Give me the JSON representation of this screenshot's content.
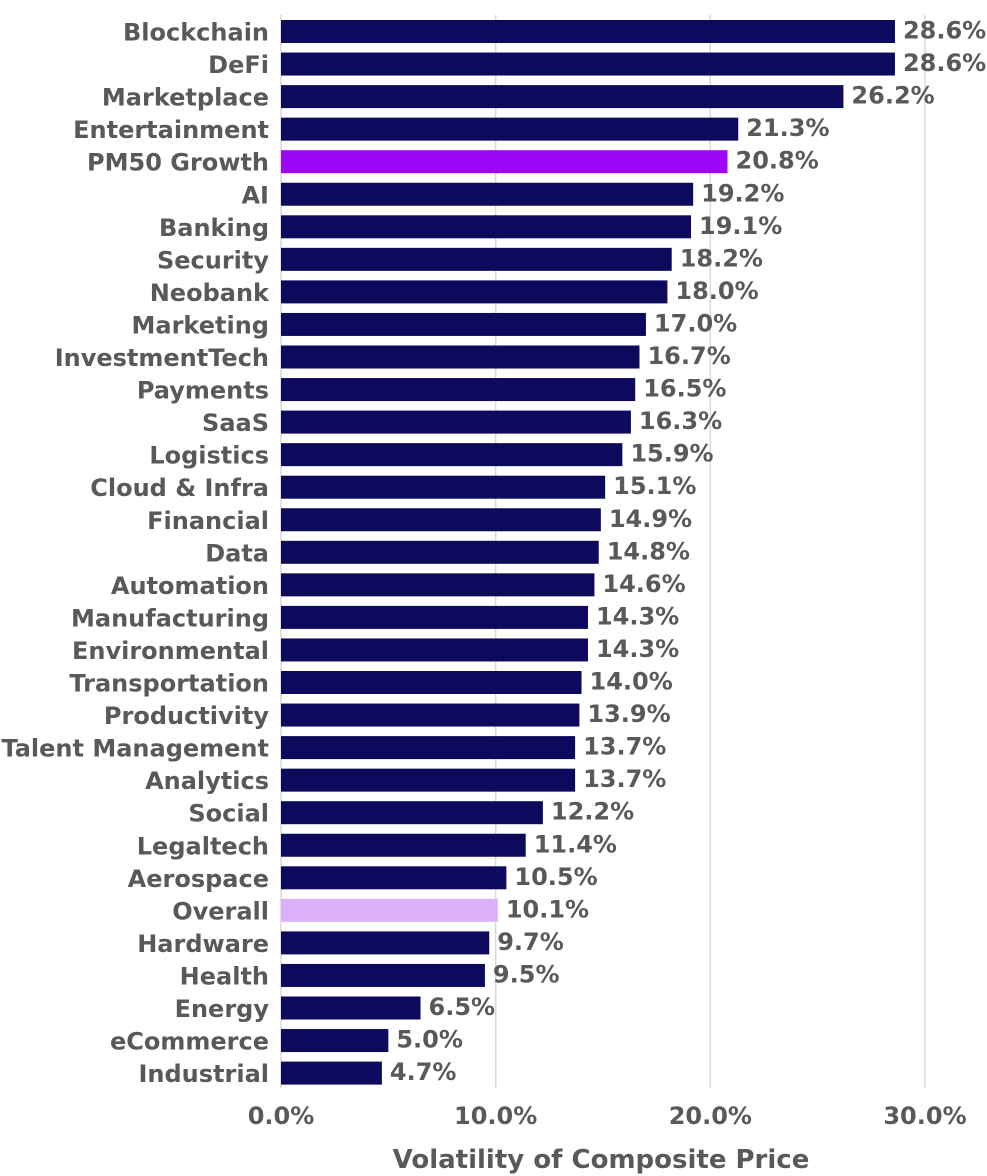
{
  "chart_data": {
    "type": "bar",
    "orientation": "horizontal",
    "title": "",
    "xlabel": "Volatility of Composite Price",
    "ylabel": "",
    "xlim": [
      0,
      30
    ],
    "xticks": [
      "0.0%",
      "10.0%",
      "20.0%",
      "30.0%"
    ],
    "xtick_values": [
      0,
      10,
      20,
      30
    ],
    "grid": "vertical",
    "legend": "none",
    "colors": {
      "default": "#0d0a5e",
      "PM50 Growth": "#9d07f5",
      "Overall": "#dcb0fa"
    },
    "categories": [
      "Blockchain",
      "DeFi",
      "Marketplace",
      "Entertainment",
      "PM50 Growth",
      "AI",
      "Banking",
      "Security",
      "Neobank",
      "Marketing",
      "InvestmentTech",
      "Payments",
      "SaaS",
      "Logistics",
      "Cloud & Infra",
      "Financial",
      "Data",
      "Automation",
      "Manufacturing",
      "Environmental",
      "Transportation",
      "Productivity",
      "Talent Management",
      "Analytics",
      "Social",
      "Legaltech",
      "Aerospace",
      "Overall",
      "Hardware",
      "Health",
      "Energy",
      "eCommerce",
      "Industrial"
    ],
    "values": [
      28.6,
      28.6,
      26.2,
      21.3,
      20.8,
      19.2,
      19.1,
      18.2,
      18.0,
      17.0,
      16.7,
      16.5,
      16.3,
      15.9,
      15.1,
      14.9,
      14.8,
      14.6,
      14.3,
      14.3,
      14.0,
      13.9,
      13.7,
      13.7,
      12.2,
      11.4,
      10.5,
      10.1,
      9.7,
      9.5,
      6.5,
      5.0,
      4.7
    ],
    "value_labels": [
      "28.6%",
      "28.6%",
      "26.2%",
      "21.3%",
      "20.8%",
      "19.2%",
      "19.1%",
      "18.2%",
      "18.0%",
      "17.0%",
      "16.7%",
      "16.5%",
      "16.3%",
      "15.9%",
      "15.1%",
      "14.9%",
      "14.8%",
      "14.6%",
      "14.3%",
      "14.3%",
      "14.0%",
      "13.9%",
      "13.7%",
      "13.7%",
      "12.2%",
      "11.4%",
      "10.5%",
      "10.1%",
      "9.7%",
      "9.5%",
      "6.5%",
      "5.0%",
      "4.7%"
    ]
  }
}
